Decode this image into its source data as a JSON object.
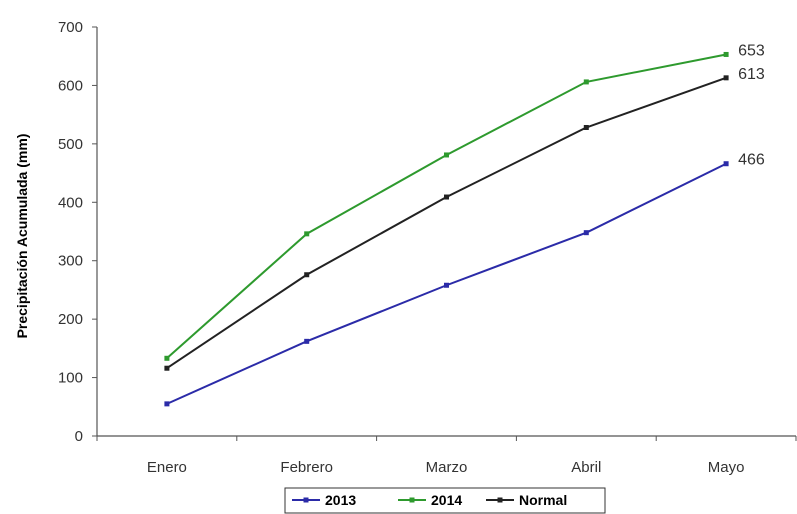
{
  "chart_data": {
    "type": "line",
    "title": "",
    "xlabel": "",
    "ylabel": "Precipitación Acumulada (mm)",
    "categories": [
      "Enero",
      "Febrero",
      "Marzo",
      "Abril",
      "Mayo"
    ],
    "ylim": [
      0,
      700
    ],
    "yticks": [
      0,
      100,
      200,
      300,
      400,
      500,
      600,
      700
    ],
    "grid": false,
    "legend_position": "bottom",
    "series": [
      {
        "name": "2013",
        "color": "#2b2ba8",
        "values": [
          55,
          162,
          258,
          348,
          466
        ],
        "end_label": "466"
      },
      {
        "name": "2014",
        "color": "#2e9a2e",
        "values": [
          133,
          346,
          481,
          606,
          653
        ],
        "end_label": "653"
      },
      {
        "name": "Normal",
        "color": "#222222",
        "values": [
          116,
          276,
          409,
          528,
          613
        ],
        "end_label": "613"
      }
    ]
  }
}
